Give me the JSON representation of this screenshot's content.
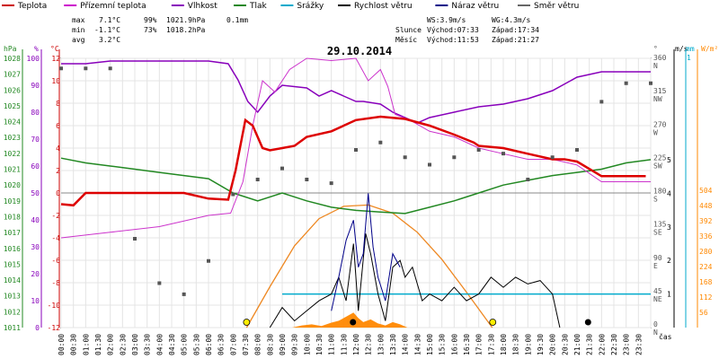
{
  "legend": [
    {
      "name": "Teplota",
      "color": "#cc0000"
    },
    {
      "name": "Přízemní teplota",
      "color": "#cc00cc"
    },
    {
      "name": "Vlhkost",
      "color": "#8800bb"
    },
    {
      "name": "Tlak",
      "color": "#228822"
    },
    {
      "name": "Srážky",
      "color": "#00aacc"
    },
    {
      "name": "Rychlost větru",
      "color": "#000000"
    },
    {
      "name": "Náraz větru",
      "color": "#000088"
    },
    {
      "name": "Směr větru",
      "color": "#666666"
    }
  ],
  "stats": {
    "max_label": "max",
    "max_temp": "7.1°C",
    "max_hum": "99%",
    "max_press": "1021.9hPa",
    "max_rain": "0.1mm",
    "min_label": "min",
    "min_temp": "-1.1°C",
    "min_hum": "73%",
    "min_press": "1018.2hPa",
    "avg_label": "avg",
    "avg_temp": "3.2°C"
  },
  "wind": {
    "ws": "WS:3.9m/s",
    "wg": "WG:4.3m/s"
  },
  "sun": {
    "label": "Slunce",
    "rise": "Východ:07:33",
    "set": "Západ:17:34"
  },
  "moon": {
    "label": "Měsíc",
    "rise": "Východ:11:53",
    "set": "Západ:21:27"
  },
  "axis_units": {
    "hpa": "hPa",
    "pct": "%",
    "degc": "°C",
    "deg": "°",
    "ms": "m/s",
    "mm": "mm",
    "wm2": "W/m²",
    "time": "čas"
  },
  "colors": {
    "temp": "#dd0000",
    "ground": "#cc33cc",
    "hum": "#8800bb",
    "press": "#228822",
    "rain": "#00aacc",
    "wind": "#000000",
    "gust": "#000088",
    "dir": "#555555",
    "solar": "#ff8800",
    "solar_curve": "#ee8822",
    "sun_marker": "#ffee00"
  },
  "chart_data": {
    "type": "line",
    "title": "29.10.2014",
    "x_range": [
      "00:00",
      "24:00"
    ],
    "x_ticks": [
      "00:00",
      "00:30",
      "01:00",
      "01:30",
      "02:00",
      "02:30",
      "03:00",
      "03:30",
      "04:00",
      "04:30",
      "05:00",
      "05:30",
      "06:00",
      "06:30",
      "07:00",
      "07:30",
      "08:00",
      "08:30",
      "09:00",
      "09:30",
      "10:00",
      "10:30",
      "11:00",
      "11:30",
      "12:00",
      "12:30",
      "13:00",
      "13:30",
      "14:00",
      "14:30",
      "15:00",
      "15:30",
      "16:00",
      "16:30",
      "17:00",
      "17:30",
      "18:00",
      "18:30",
      "19:00",
      "19:30",
      "20:00",
      "20:30",
      "21:00",
      "21:30",
      "22:00",
      "22:30",
      "23:00",
      "23:30"
    ],
    "axes": {
      "pressure_hpa": {
        "min": 1011,
        "max": 1028,
        "ticks": [
          1011,
          1012,
          1013,
          1014,
          1015,
          1016,
          1017,
          1018,
          1019,
          1020,
          1021,
          1022,
          1023,
          1024,
          1025,
          1026,
          1027,
          1028
        ]
      },
      "humidity_pct": {
        "min": 0,
        "max": 100,
        "ticks": [
          0,
          10,
          20,
          30,
          40,
          50,
          60,
          70,
          80,
          90,
          100
        ]
      },
      "temp_c": {
        "min": -12,
        "max": 12,
        "ticks": [
          -12,
          -10,
          -8,
          -6,
          -4,
          -2,
          0,
          2,
          4,
          6,
          8,
          10,
          12
        ]
      },
      "wind_dir_deg": {
        "ticks": [
          {
            "v": 0,
            "l": "N"
          },
          {
            "v": 45,
            "l": "NE"
          },
          {
            "v": 90,
            "l": "E"
          },
          {
            "v": 135,
            "l": "SE"
          },
          {
            "v": 180,
            "l": "S"
          },
          {
            "v": 225,
            "l": "SW"
          },
          {
            "v": 270,
            "l": "W"
          },
          {
            "v": 315,
            "l": "NW"
          },
          {
            "v": 360,
            "l": "N"
          }
        ]
      },
      "wind_ms": {
        "ticks": [
          1,
          2,
          3,
          4,
          5
        ]
      },
      "rain_mm": {
        "ticks": [
          1
        ]
      },
      "solar_wm2": {
        "ticks": [
          56,
          112,
          168,
          224,
          280,
          336,
          392,
          448,
          504
        ]
      }
    },
    "series": [
      {
        "name": "Teplota",
        "axis": "temp_c",
        "points": [
          [
            0,
            -1
          ],
          [
            0.5,
            -1.1
          ],
          [
            1,
            0
          ],
          [
            1.5,
            0
          ],
          [
            2,
            0
          ],
          [
            3,
            0
          ],
          [
            4,
            0
          ],
          [
            5,
            0
          ],
          [
            6,
            -0.5
          ],
          [
            6.8,
            -0.6
          ],
          [
            7.1,
            2
          ],
          [
            7.5,
            6.5
          ],
          [
            7.8,
            6
          ],
          [
            8.2,
            4
          ],
          [
            8.5,
            3.8
          ],
          [
            9,
            4
          ],
          [
            9.5,
            4.2
          ],
          [
            10,
            5
          ],
          [
            11,
            5.5
          ],
          [
            12,
            6.5
          ],
          [
            13,
            6.8
          ],
          [
            14,
            6.6
          ],
          [
            15,
            6
          ],
          [
            16,
            5.2
          ],
          [
            16.8,
            4.5
          ],
          [
            17,
            4.2
          ],
          [
            18,
            4
          ],
          [
            19,
            3.5
          ],
          [
            20,
            3
          ],
          [
            20.5,
            3
          ],
          [
            21,
            2.8
          ],
          [
            22,
            1.5
          ],
          [
            23,
            1.5
          ],
          [
            23.8,
            1.5
          ]
        ]
      },
      {
        "name": "Přízemní teplota",
        "points": [
          [
            0,
            -4
          ],
          [
            2,
            -3.5
          ],
          [
            4,
            -3
          ],
          [
            6,
            -2
          ],
          [
            6.9,
            -1.8
          ],
          [
            7.4,
            1
          ],
          [
            7.8,
            6
          ],
          [
            8.2,
            10
          ],
          [
            8.7,
            9
          ],
          [
            9.3,
            11
          ],
          [
            10,
            12
          ],
          [
            11,
            11.8
          ],
          [
            12,
            12
          ],
          [
            12.5,
            10
          ],
          [
            13,
            11
          ],
          [
            13.3,
            9.5
          ],
          [
            13.6,
            7
          ],
          [
            14.2,
            6.5
          ],
          [
            15,
            5.5
          ],
          [
            16,
            5
          ],
          [
            17,
            4
          ],
          [
            18,
            3.5
          ],
          [
            19,
            3
          ],
          [
            20,
            3
          ],
          [
            21,
            2.5
          ],
          [
            22,
            1
          ],
          [
            23,
            1
          ],
          [
            24,
            1
          ]
        ]
      },
      {
        "name": "Vlhkost",
        "axis": "humidity_pct",
        "points": [
          [
            0,
            98
          ],
          [
            1,
            98
          ],
          [
            2,
            99
          ],
          [
            3,
            99
          ],
          [
            4,
            99
          ],
          [
            5,
            99
          ],
          [
            6,
            99
          ],
          [
            6.8,
            98
          ],
          [
            7.2,
            92
          ],
          [
            7.6,
            84
          ],
          [
            8,
            80
          ],
          [
            8.5,
            86
          ],
          [
            9,
            90
          ],
          [
            10,
            89
          ],
          [
            10.5,
            86
          ],
          [
            11,
            88
          ],
          [
            11.5,
            86
          ],
          [
            12,
            84
          ],
          [
            12.3,
            84
          ],
          [
            13,
            83
          ],
          [
            13.5,
            80
          ],
          [
            14,
            78
          ],
          [
            14.5,
            76
          ],
          [
            15,
            78
          ],
          [
            16,
            80
          ],
          [
            17,
            82
          ],
          [
            18,
            83
          ],
          [
            19,
            85
          ],
          [
            20,
            88
          ],
          [
            21,
            93
          ],
          [
            22,
            95
          ],
          [
            23,
            95
          ],
          [
            24,
            95
          ]
        ]
      },
      {
        "name": "Tlak",
        "axis": "pressure_hpa",
        "points": [
          [
            0,
            1021.7
          ],
          [
            1,
            1021.4
          ],
          [
            2,
            1021.2
          ],
          [
            3,
            1021
          ],
          [
            4,
            1020.8
          ],
          [
            5,
            1020.6
          ],
          [
            6,
            1020.4
          ],
          [
            7,
            1019.5
          ],
          [
            8,
            1019
          ],
          [
            9,
            1019.5
          ],
          [
            10,
            1019
          ],
          [
            11,
            1018.6
          ],
          [
            12,
            1018.4
          ],
          [
            13,
            1018.3
          ],
          [
            14,
            1018.2
          ],
          [
            15,
            1018.6
          ],
          [
            16,
            1019
          ],
          [
            17,
            1019.5
          ],
          [
            18,
            1020
          ],
          [
            19,
            1020.3
          ],
          [
            20,
            1020.6
          ],
          [
            21,
            1020.8
          ],
          [
            22,
            1021
          ],
          [
            23,
            1021.4
          ],
          [
            24,
            1021.6
          ]
        ]
      },
      {
        "name": "Srážky",
        "axis": "rain_mm",
        "points": [
          [
            9.0,
            0.1
          ],
          [
            24,
            0.1
          ]
        ]
      },
      {
        "name": "Rychlost větru",
        "axis": "wind_ms",
        "points": [
          [
            8.5,
            0
          ],
          [
            9,
            0.6
          ],
          [
            9.5,
            0.2
          ],
          [
            10,
            0.5
          ],
          [
            10.5,
            0.8
          ],
          [
            11,
            1
          ],
          [
            11.3,
            1.5
          ],
          [
            11.6,
            0.8
          ],
          [
            11.9,
            2.5
          ],
          [
            12.1,
            0.5
          ],
          [
            12.4,
            2.8
          ],
          [
            12.6,
            2.2
          ],
          [
            12.9,
            1
          ],
          [
            13.2,
            0.2
          ],
          [
            13.5,
            1.8
          ],
          [
            13.8,
            2
          ],
          [
            14,
            1.5
          ],
          [
            14.3,
            1.8
          ],
          [
            14.7,
            0.8
          ],
          [
            15,
            1
          ],
          [
            15.5,
            0.8
          ],
          [
            16,
            1.2
          ],
          [
            16.5,
            0.8
          ],
          [
            17,
            1
          ],
          [
            17.5,
            1.5
          ],
          [
            18,
            1.2
          ],
          [
            18.5,
            1.5
          ],
          [
            19,
            1.3
          ],
          [
            19.5,
            1.4
          ],
          [
            20,
            1
          ],
          [
            20.3,
            0
          ]
        ]
      },
      {
        "name": "Náraz větru",
        "axis": "wind_ms",
        "points": [
          [
            11,
            0.5
          ],
          [
            11.3,
            1.5
          ],
          [
            11.6,
            2.6
          ],
          [
            11.9,
            3.2
          ],
          [
            12.1,
            1.8
          ],
          [
            12.3,
            2.2
          ],
          [
            12.5,
            4.0
          ],
          [
            12.7,
            2.4
          ],
          [
            12.9,
            1.5
          ],
          [
            13.2,
            0.8
          ],
          [
            13.5,
            2.2
          ],
          [
            13.8,
            1.8
          ]
        ]
      },
      {
        "name": "Směr větru",
        "axis": "wind_dir_deg",
        "points": [
          [
            0,
            350
          ],
          [
            1,
            350
          ],
          [
            2,
            350
          ],
          [
            3,
            120
          ],
          [
            4,
            60
          ],
          [
            5,
            45
          ],
          [
            6,
            90
          ],
          [
            7,
            180
          ],
          [
            8,
            200
          ],
          [
            9,
            215
          ],
          [
            10,
            200
          ],
          [
            11,
            195
          ],
          [
            12,
            240
          ],
          [
            13,
            250
          ],
          [
            14,
            230
          ],
          [
            15,
            220
          ],
          [
            16,
            230
          ],
          [
            17,
            240
          ],
          [
            18,
            235
          ],
          [
            19,
            200
          ],
          [
            20,
            230
          ],
          [
            21,
            240
          ],
          [
            22,
            305
          ],
          [
            23,
            330
          ],
          [
            24,
            330
          ]
        ]
      },
      {
        "name": "solar",
        "axis": "solar_wm2",
        "points": [
          [
            7.55,
            0
          ],
          [
            8.5,
            150
          ],
          [
            9.5,
            300
          ],
          [
            10.5,
            400
          ],
          [
            11.5,
            445
          ],
          [
            12.5,
            450
          ],
          [
            13.5,
            420
          ],
          [
            14.5,
            350
          ],
          [
            15.5,
            250
          ],
          [
            16.5,
            130
          ],
          [
            17.55,
            0
          ]
        ]
      }
    ]
  }
}
